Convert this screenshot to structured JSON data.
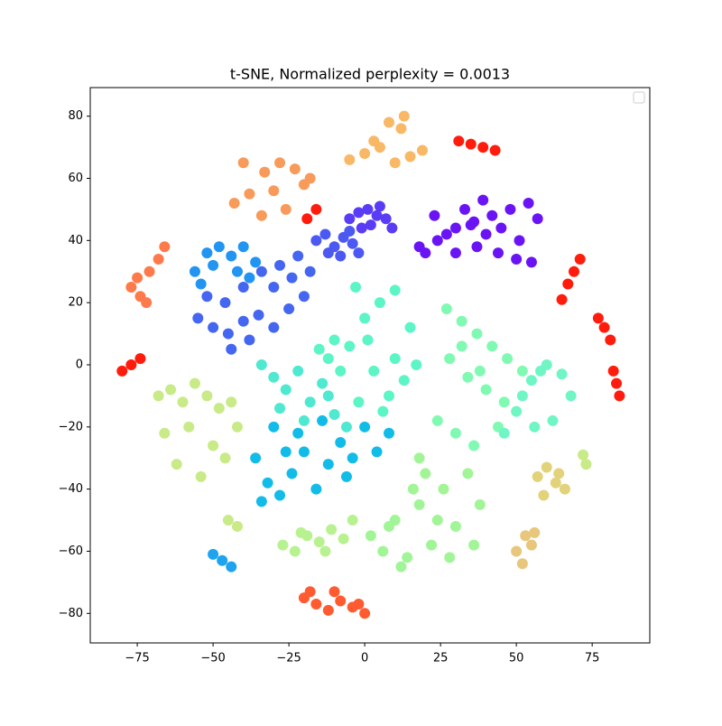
{
  "chart_data": {
    "type": "scatter",
    "title": "t-SNE, Normalized perplexity = 0.0013",
    "xlim": [
      -90.5,
      94
    ],
    "ylim": [
      -89.5,
      89.2
    ],
    "xticks": [
      {
        "value": -75,
        "label": "−75"
      },
      {
        "value": -50,
        "label": "−50"
      },
      {
        "value": -25,
        "label": "−25"
      },
      0,
      25,
      50,
      75
    ],
    "yticks": [
      {
        "value": -80,
        "label": "−80"
      },
      {
        "value": -60,
        "label": "−60"
      },
      {
        "value": -40,
        "label": "−40"
      },
      {
        "value": -20,
        "label": "−20"
      },
      0,
      20,
      40,
      60,
      80
    ],
    "series": [
      {
        "color": "#6a14f5",
        "x": [
          18,
          24,
          30,
          36,
          42,
          48,
          54,
          20,
          27,
          33,
          39,
          45,
          51,
          57,
          23,
          30,
          37,
          44,
          50,
          55,
          40,
          35
        ],
        "y": [
          38,
          40,
          44,
          46,
          48,
          50,
          52,
          36,
          42,
          50,
          53,
          44,
          40,
          47,
          48,
          36,
          38,
          36,
          34,
          33,
          42,
          45
        ]
      },
      {
        "color": "#5b3cf6",
        "x": [
          -5,
          -2,
          1,
          4,
          7,
          9,
          2,
          -1,
          5
        ],
        "y": [
          47,
          49,
          50,
          48,
          47,
          44,
          45,
          44,
          51
        ]
      },
      {
        "color": "#4b58f2",
        "x": [
          -16,
          -13,
          -10,
          -7,
          -4,
          -2,
          -12,
          -8,
          -5
        ],
        "y": [
          40,
          42,
          38,
          41,
          39,
          36,
          36,
          35,
          43
        ]
      },
      {
        "color": "#4466f0",
        "x": [
          -55,
          -50,
          -45,
          -40,
          -35,
          -30,
          -25,
          -20,
          -18,
          -52,
          -46,
          -40,
          -34,
          -28,
          -22,
          -38,
          -30,
          -24,
          -44
        ],
        "y": [
          15,
          12,
          10,
          14,
          16,
          12,
          18,
          22,
          30,
          22,
          20,
          25,
          30,
          32,
          35,
          8,
          25,
          28,
          5
        ]
      },
      {
        "color": "#2294f2",
        "x": [
          -56,
          -52,
          -48,
          -44,
          -40,
          -36,
          -54,
          -50,
          -42,
          -38
        ],
        "y": [
          30,
          36,
          38,
          35,
          38,
          33,
          26,
          32,
          30,
          28
        ]
      },
      {
        "color": "#5cf5c6",
        "x": [
          -15,
          -10,
          -5,
          0,
          5,
          10,
          15,
          -12,
          -3,
          3,
          8,
          13,
          -8,
          1,
          10,
          17,
          -2,
          6
        ],
        "y": [
          5,
          8,
          6,
          15,
          20,
          24,
          12,
          2,
          25,
          -2,
          -10,
          -5,
          -2,
          8,
          2,
          0,
          -12,
          -15
        ]
      },
      {
        "color": "#4fe8d0",
        "x": [
          -34,
          -30,
          -26,
          -22,
          -18,
          -14,
          -10,
          -28,
          -20,
          -12,
          -6
        ],
        "y": [
          0,
          -4,
          -8,
          -2,
          -12,
          -6,
          -16,
          -14,
          -18,
          -10,
          -20
        ]
      },
      {
        "color": "#12bce8",
        "x": [
          -36,
          -32,
          -28,
          -24,
          -20,
          -16,
          -12,
          -8,
          -4,
          0,
          4,
          8,
          -30,
          -22,
          -14,
          -6,
          -34,
          -26
        ],
        "y": [
          -30,
          -38,
          -42,
          -35,
          -28,
          -40,
          -32,
          -25,
          -30,
          -20,
          -28,
          -22,
          -20,
          -22,
          -18,
          -36,
          -44,
          -28
        ]
      },
      {
        "color": "#80fab2",
        "x": [
          27,
          32,
          37,
          42,
          47,
          52,
          28,
          34,
          40,
          46,
          24,
          30,
          36,
          44,
          38,
          32
        ],
        "y": [
          18,
          14,
          10,
          6,
          2,
          -2,
          2,
          -4,
          -8,
          -12,
          -18,
          -22,
          -26,
          -20,
          -2,
          6
        ]
      },
      {
        "color": "#6ff6c4",
        "x": [
          50,
          55,
          60,
          65,
          68,
          56,
          62,
          46,
          52,
          58
        ],
        "y": [
          -15,
          -5,
          0,
          -3,
          -10,
          -20,
          -18,
          -22,
          -10,
          -2
        ]
      },
      {
        "color": "#a2f597",
        "x": [
          2,
          6,
          10,
          14,
          18,
          22,
          26,
          30,
          34,
          38,
          12,
          20,
          28,
          16,
          24,
          8,
          36,
          18
        ],
        "y": [
          -55,
          -60,
          -50,
          -62,
          -45,
          -58,
          -40,
          -52,
          -35,
          -45,
          -65,
          -35,
          -62,
          -40,
          -50,
          -52,
          -58,
          -30
        ]
      },
      {
        "color": "#b8f290",
        "x": [
          -27,
          -23,
          -19,
          -15,
          -11,
          -7,
          -4,
          -21,
          -13
        ],
        "y": [
          -58,
          -60,
          -55,
          -57,
          -53,
          -56,
          -50,
          -54,
          -60
        ]
      },
      {
        "color": "#c8ea87",
        "x": [
          -68,
          -64,
          -60,
          -56,
          -52,
          -48,
          -44,
          -66,
          -58,
          -50,
          -42,
          -62,
          -54,
          -46
        ],
        "y": [
          -10,
          -8,
          -12,
          -6,
          -10,
          -14,
          -12,
          -22,
          -20,
          -26,
          -20,
          -32,
          -36,
          -30
        ]
      },
      {
        "color": "#e2d27a",
        "x": [
          57,
          60,
          63,
          66,
          59,
          64
        ],
        "y": [
          -36,
          -33,
          -38,
          -40,
          -42,
          -35
        ]
      },
      {
        "color": "#e8c67c",
        "x": [
          50,
          53,
          56,
          52,
          55
        ],
        "y": [
          -60,
          -55,
          -54,
          -64,
          -58
        ]
      },
      {
        "color": "#f8b866",
        "x": [
          -5,
          0,
          5,
          10,
          15,
          19,
          3,
          8,
          13,
          12
        ],
        "y": [
          66,
          68,
          70,
          65,
          67,
          69,
          72,
          78,
          80,
          76
        ]
      },
      {
        "color": "#f89a5a",
        "x": [
          -43,
          -38,
          -33,
          -28,
          -23,
          -18,
          -40,
          -34,
          -26,
          -20,
          -30
        ],
        "y": [
          52,
          55,
          62,
          65,
          63,
          60,
          65,
          48,
          50,
          58,
          56
        ]
      },
      {
        "color": "#ff7a4a",
        "x": [
          -77,
          -74,
          -71,
          -68,
          -66,
          -75,
          -72
        ],
        "y": [
          25,
          22,
          30,
          34,
          38,
          28,
          20
        ]
      },
      {
        "color": "#ff5a30",
        "x": [
          -20,
          -16,
          -12,
          -8,
          -4,
          0,
          -18,
          -10,
          -2
        ],
        "y": [
          -75,
          -77,
          -79,
          -76,
          -78,
          -80,
          -73,
          -73,
          -77
        ]
      },
      {
        "color": "#ff1c0c",
        "x": [
          -80,
          -77,
          -74,
          31,
          35,
          39,
          43,
          65,
          67,
          69,
          71,
          77,
          79,
          81,
          82,
          83,
          84,
          -19,
          -16
        ],
        "y": [
          -2,
          0,
          2,
          72,
          71,
          70,
          69,
          21,
          26,
          30,
          34,
          15,
          12,
          8,
          -2,
          -6,
          -10,
          47,
          50
        ]
      },
      {
        "color": "#c8ea87",
        "x": [
          -45,
          -42,
          72,
          73
        ],
        "y": [
          -50,
          -52,
          -29,
          -32
        ]
      },
      {
        "color": "#1ea4ee",
        "x": [
          -50,
          -47,
          -44
        ],
        "y": [
          -61,
          -63,
          -65
        ]
      }
    ]
  }
}
